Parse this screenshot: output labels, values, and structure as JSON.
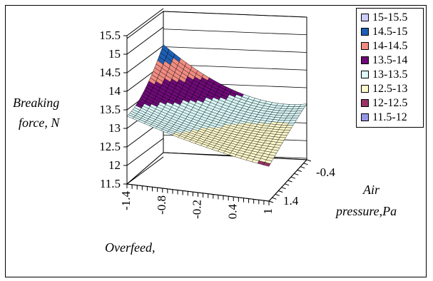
{
  "chart_data": {
    "type": "surface",
    "zlabel_lines": [
      "Breaking",
      "force, N"
    ],
    "xlabel_lines": [
      "Overfeed,"
    ],
    "ylabel_lines": [
      "Air",
      "pressure,Pa"
    ],
    "z_ticks": [
      "11.5",
      "12",
      "12.5",
      "13",
      "13.5",
      "14",
      "14.5",
      "15",
      "15.5"
    ],
    "x_ticks": [
      "-1.4",
      "-0.8",
      "-0.2",
      "0.4",
      "1"
    ],
    "y_ticks": [
      "-0.4",
      "1.4"
    ],
    "zlim": [
      11.5,
      15.5
    ],
    "legend": [
      {
        "label": "15-15.5",
        "color": "#ccccff"
      },
      {
        "label": "14.5-15",
        "color": "#1e5fb4"
      },
      {
        "label": "14-14.5",
        "color": "#f08c82"
      },
      {
        "label": "13.5-14",
        "color": "#6e0a78"
      },
      {
        "label": "13-13.5",
        "color": "#dcfafa"
      },
      {
        "label": "12.5-13",
        "color": "#fffacc"
      },
      {
        "label": "12-12.5",
        "color": "#9b3264"
      },
      {
        "label": "11.5-12",
        "color": "#9696e6"
      }
    ],
    "grid": true,
    "legend_position": "right"
  }
}
